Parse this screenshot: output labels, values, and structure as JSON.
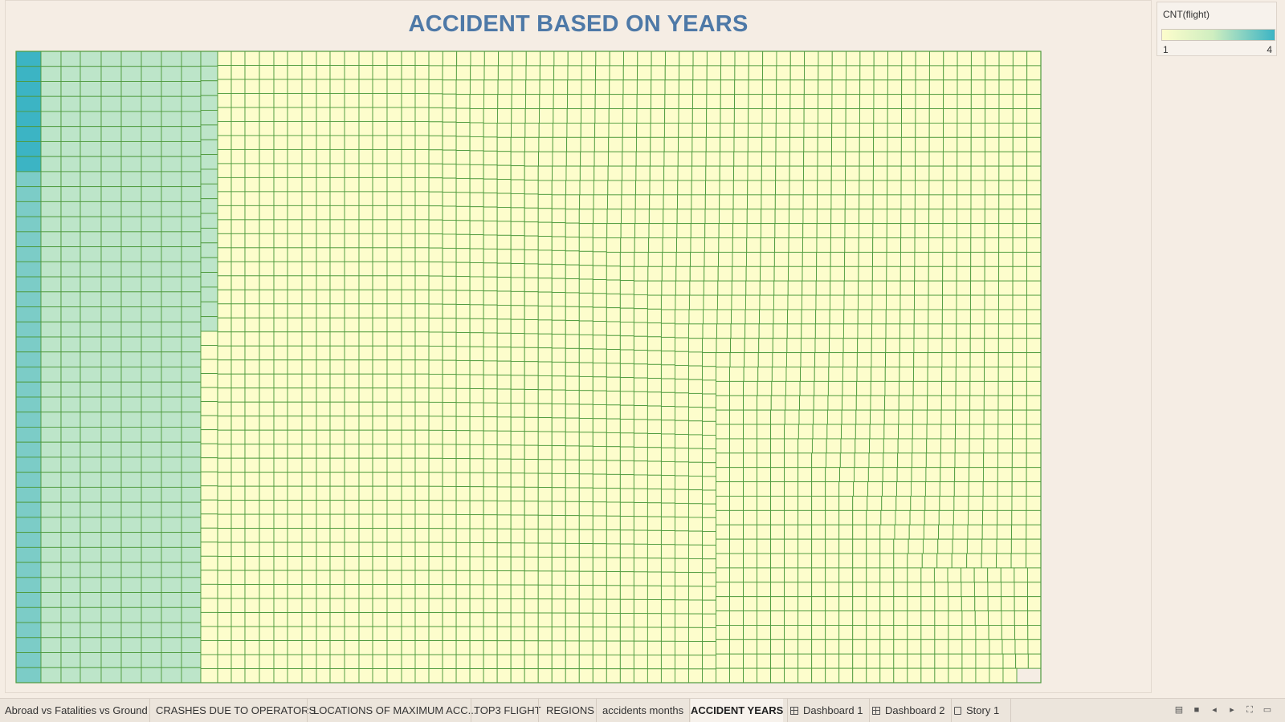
{
  "chart_data": {
    "type": "heatmap",
    "title": "ACCIDENT BASED ON YEARS",
    "measure": "CNT(flight)",
    "color_range": [
      1,
      4
    ],
    "color_low": "#fdfdcc",
    "color_high": "#3cb4c4",
    "cell_border_color": "#4e9a3c",
    "cell_counts": {
      "column_1_upper_rows": 4,
      "column_1_lower_rows": 3,
      "columns_2_to_9": 2,
      "column_10_upper_rows": 2,
      "remaining_columns": 1
    },
    "legend_placement": "top-right"
  },
  "legend": {
    "title": "CNT(flight)",
    "min_label": "1",
    "max_label": "4"
  },
  "tabs": [
    {
      "label": "Abroad vs Fatalities vs Ground",
      "icon": "none",
      "active": false
    },
    {
      "label": "CRASHES DUE TO OPERATORS",
      "icon": "none",
      "active": false
    },
    {
      "label": "LOCATIONS OF MAXIMUM ACC...",
      "icon": "none",
      "active": false
    },
    {
      "label": "TOP3 FLIGHT",
      "icon": "none",
      "active": false
    },
    {
      "label": "REGIONS",
      "icon": "none",
      "active": false
    },
    {
      "label": "accidents months",
      "icon": "none",
      "active": false
    },
    {
      "label": "ACCIDENT YEARS",
      "icon": "none",
      "active": true
    },
    {
      "label": "Dashboard 1",
      "icon": "dashboard-icon",
      "active": false
    },
    {
      "label": "Dashboard 2",
      "icon": "dashboard-icon",
      "active": false
    },
    {
      "label": "Story 1",
      "icon": "story-icon",
      "active": false
    }
  ],
  "controls": [
    {
      "name": "show-filmstrip-icon",
      "glyph": "▤"
    },
    {
      "name": "show-tabs-icon",
      "glyph": "■"
    },
    {
      "name": "prev-sheet-icon",
      "glyph": "◂"
    },
    {
      "name": "next-sheet-icon",
      "glyph": "▸"
    },
    {
      "name": "fullscreen-icon",
      "glyph": "⛶"
    },
    {
      "name": "presentation-mode-icon",
      "glyph": "▭"
    }
  ]
}
